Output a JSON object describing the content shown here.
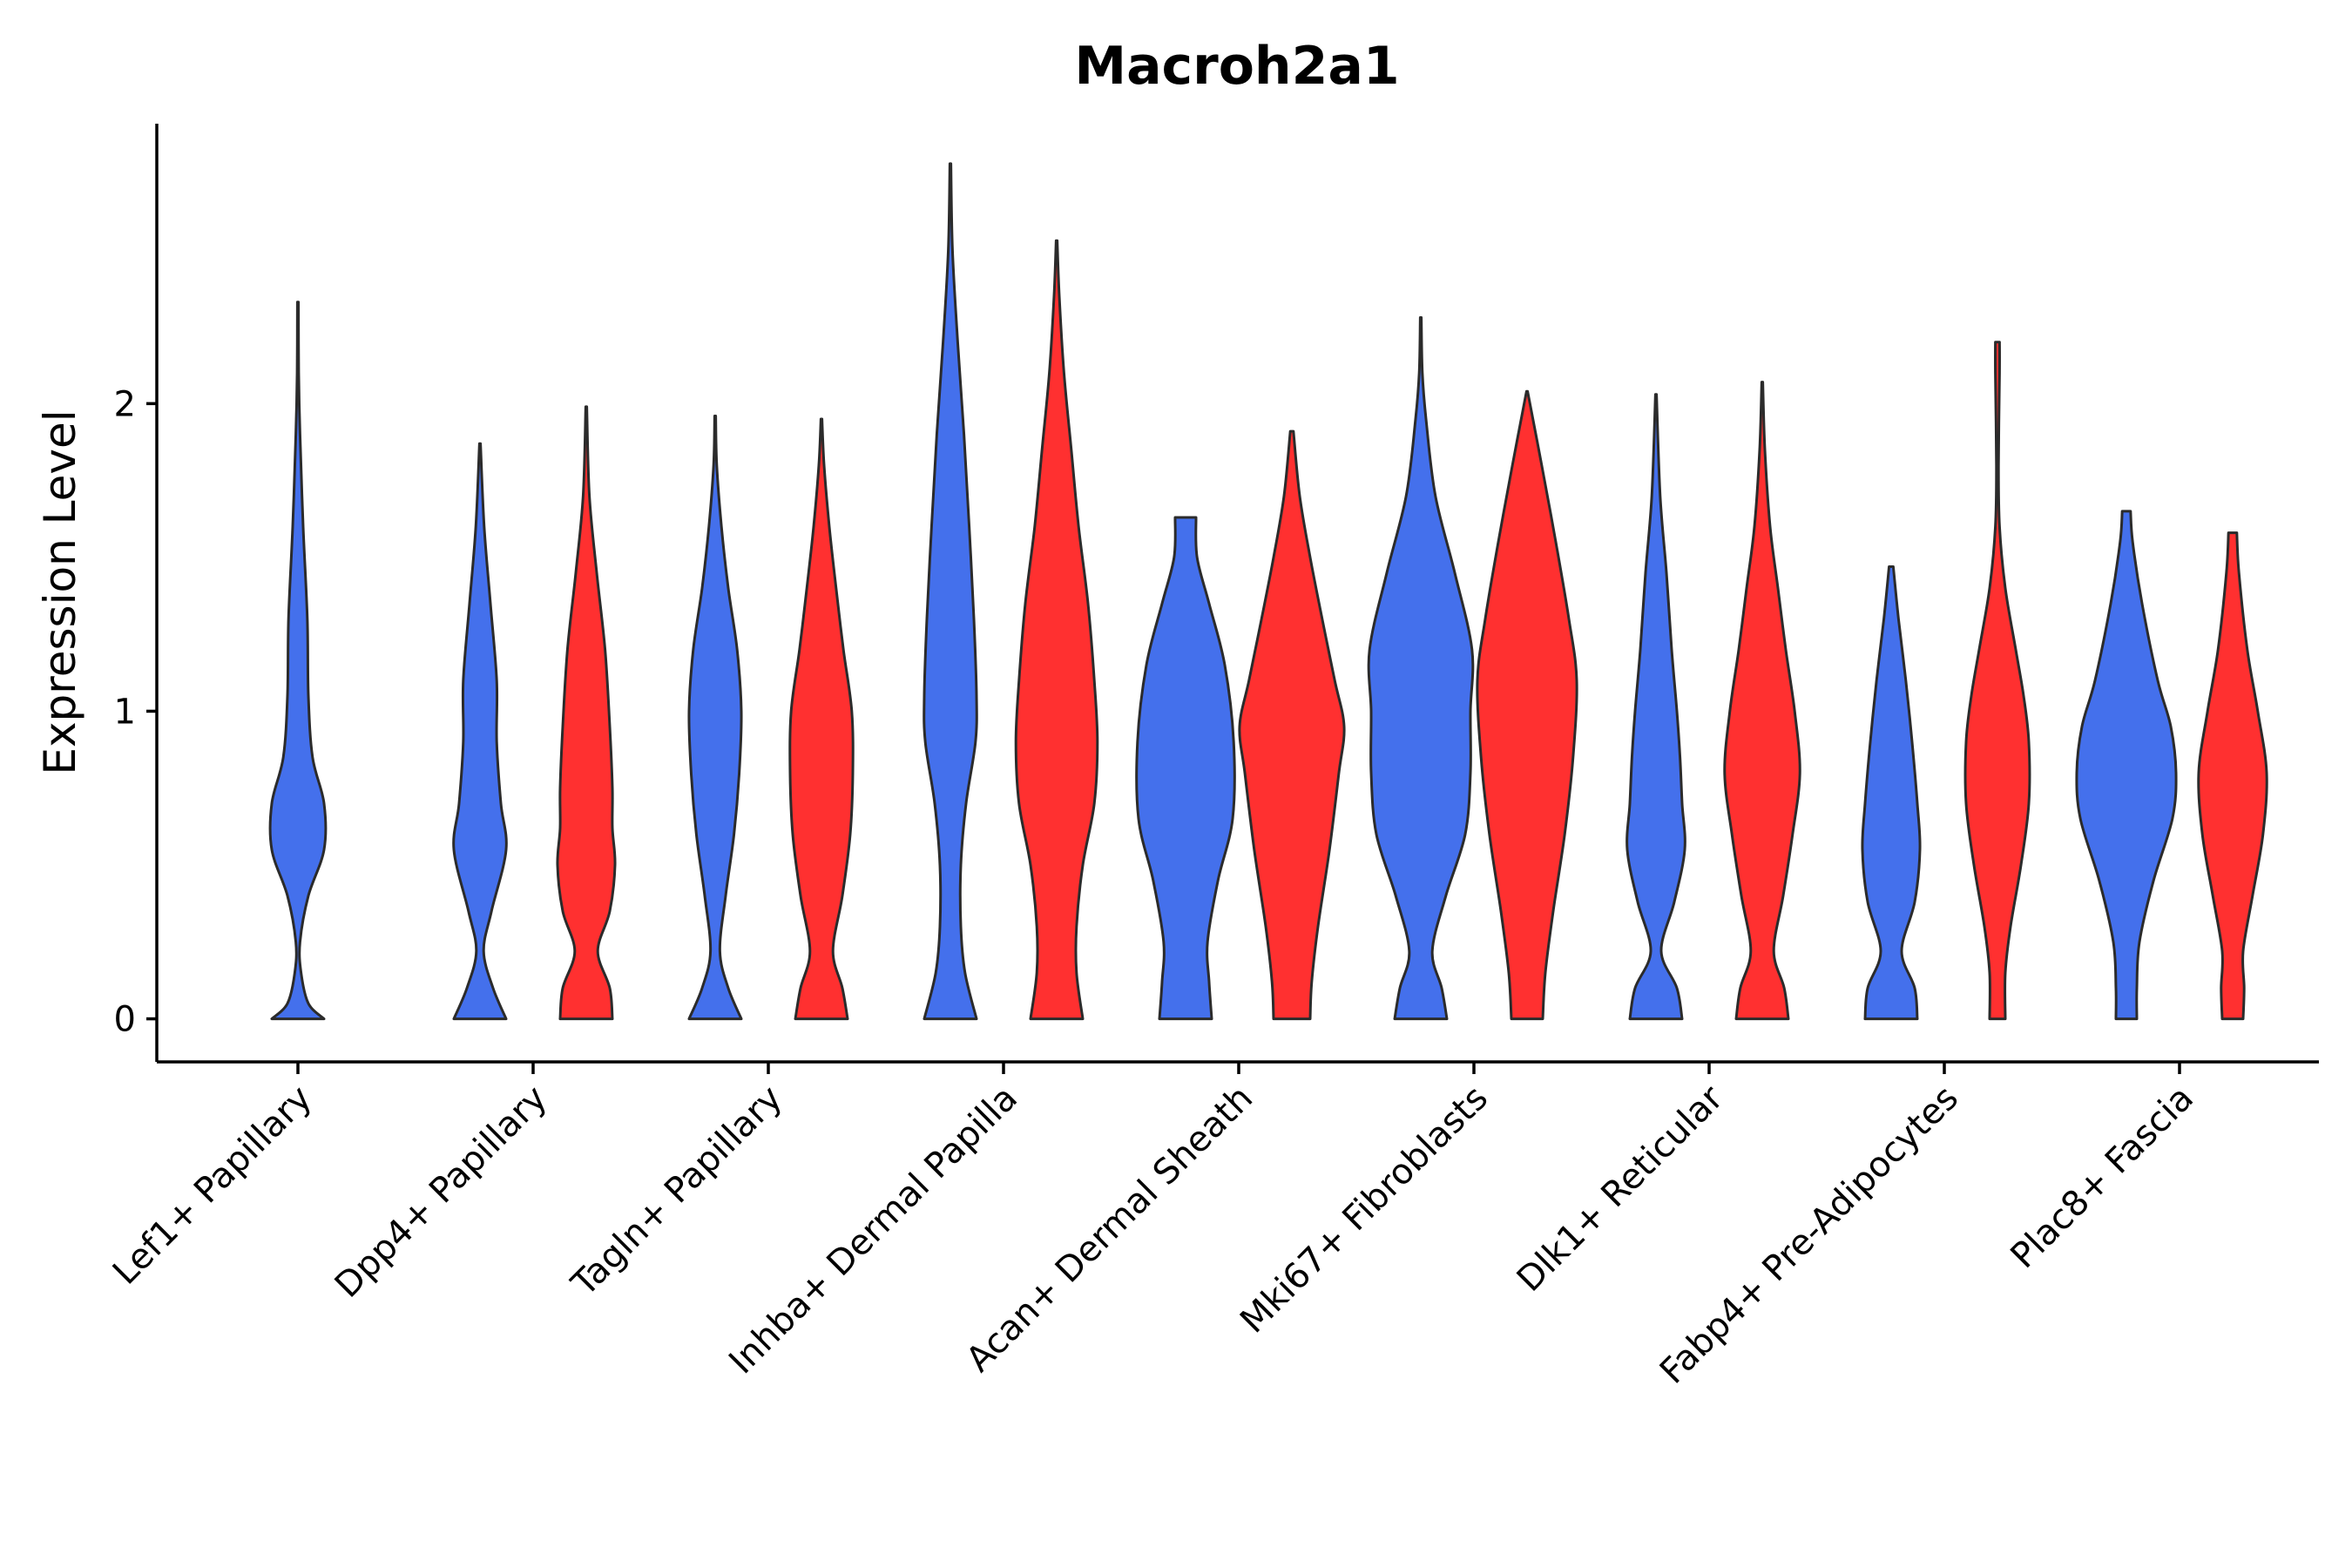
{
  "chart_data": {
    "type": "violin",
    "title": "Macroh2a1",
    "xlabel": "",
    "ylabel": "Expression Level",
    "ylim": [
      -0.14,
      2.91
    ],
    "yticks": [
      0,
      1,
      2
    ],
    "grid": false,
    "legend": "none",
    "categories": [
      "Lef1+ Papillary",
      "Dpp4+ Papillary",
      "Tagln+ Papillary",
      "Inhba+ Dermal Papilla",
      "Acan+ Dermal Sheath",
      "Mki67+ Fibroblasts",
      "Dlk1+ Reticular",
      "Fabp4+ Pre-Adipocytes",
      "Plac8+ Fascia"
    ],
    "series": [
      {
        "color": "#4470ec",
        "violins": [
          {
            "max": 2.33,
            "profile": [
              [
                0,
                0.5
              ],
              [
                0.05,
                0.2
              ],
              [
                0.15,
                0.06
              ],
              [
                0.25,
                0.04
              ],
              [
                0.4,
                0.2
              ],
              [
                0.55,
                0.5
              ],
              [
                0.7,
                0.5
              ],
              [
                0.85,
                0.28
              ],
              [
                1.05,
                0.2
              ],
              [
                1.3,
                0.18
              ],
              [
                1.6,
                0.1
              ],
              [
                1.9,
                0.04
              ],
              [
                2.1,
                0.015
              ],
              [
                2.33,
                0.01
              ]
            ]
          },
          {
            "max": 1.87,
            "profile": [
              [
                0,
                0.5
              ],
              [
                0.1,
                0.25
              ],
              [
                0.22,
                0.07
              ],
              [
                0.35,
                0.22
              ],
              [
                0.55,
                0.5
              ],
              [
                0.7,
                0.4
              ],
              [
                0.9,
                0.32
              ],
              [
                1.1,
                0.32
              ],
              [
                1.35,
                0.2
              ],
              [
                1.6,
                0.08
              ],
              [
                1.87,
                0.01
              ]
            ]
          },
          {
            "max": 1.96,
            "profile": [
              [
                0,
                0.5
              ],
              [
                0.1,
                0.25
              ],
              [
                0.22,
                0.09
              ],
              [
                0.4,
                0.2
              ],
              [
                0.6,
                0.36
              ],
              [
                0.8,
                0.46
              ],
              [
                1.0,
                0.5
              ],
              [
                1.2,
                0.42
              ],
              [
                1.4,
                0.25
              ],
              [
                1.6,
                0.12
              ],
              [
                1.8,
                0.03
              ],
              [
                1.96,
                0.01
              ]
            ]
          },
          {
            "max": 2.78,
            "profile": [
              [
                0,
                0.5
              ],
              [
                0.15,
                0.28
              ],
              [
                0.3,
                0.2
              ],
              [
                0.5,
                0.2
              ],
              [
                0.7,
                0.3
              ],
              [
                0.9,
                0.48
              ],
              [
                1.05,
                0.5
              ],
              [
                1.3,
                0.45
              ],
              [
                1.6,
                0.36
              ],
              [
                1.9,
                0.26
              ],
              [
                2.2,
                0.14
              ],
              [
                2.5,
                0.04
              ],
              [
                2.78,
                0.01
              ]
            ]
          },
          {
            "max": 1.63,
            "profile": [
              [
                0,
                0.5
              ],
              [
                0.12,
                0.45
              ],
              [
                0.25,
                0.42
              ],
              [
                0.45,
                0.62
              ],
              [
                0.65,
                0.9
              ],
              [
                0.9,
                0.92
              ],
              [
                1.15,
                0.75
              ],
              [
                1.35,
                0.45
              ],
              [
                1.5,
                0.22
              ],
              [
                1.63,
                0.2
              ]
            ]
          },
          {
            "max": 2.28,
            "profile": [
              [
                0,
                0.5
              ],
              [
                0.1,
                0.4
              ],
              [
                0.22,
                0.22
              ],
              [
                0.4,
                0.48
              ],
              [
                0.6,
                0.85
              ],
              [
                0.8,
                0.95
              ],
              [
                1.0,
                0.95
              ],
              [
                1.2,
                0.98
              ],
              [
                1.45,
                0.65
              ],
              [
                1.7,
                0.28
              ],
              [
                1.95,
                0.1
              ],
              [
                2.1,
                0.03
              ],
              [
                2.28,
                0.01
              ]
            ]
          },
          {
            "max": 2.03,
            "profile": [
              [
                0,
                0.5
              ],
              [
                0.1,
                0.4
              ],
              [
                0.22,
                0.1
              ],
              [
                0.38,
                0.35
              ],
              [
                0.55,
                0.55
              ],
              [
                0.7,
                0.5
              ],
              [
                0.85,
                0.46
              ],
              [
                1.0,
                0.4
              ],
              [
                1.2,
                0.3
              ],
              [
                1.45,
                0.2
              ],
              [
                1.7,
                0.08
              ],
              [
                2.03,
                0.01
              ]
            ]
          },
          {
            "max": 1.47,
            "profile": [
              [
                0,
                0.5
              ],
              [
                0.1,
                0.45
              ],
              [
                0.22,
                0.2
              ],
              [
                0.38,
                0.45
              ],
              [
                0.55,
                0.55
              ],
              [
                0.7,
                0.5
              ],
              [
                0.9,
                0.4
              ],
              [
                1.1,
                0.28
              ],
              [
                1.3,
                0.14
              ],
              [
                1.47,
                0.04
              ]
            ]
          },
          {
            "max": 1.65,
            "profile": [
              [
                0,
                0.2
              ],
              [
                0.1,
                0.2
              ],
              [
                0.25,
                0.25
              ],
              [
                0.45,
                0.52
              ],
              [
                0.65,
                0.88
              ],
              [
                0.8,
                0.95
              ],
              [
                0.95,
                0.85
              ],
              [
                1.1,
                0.6
              ],
              [
                1.35,
                0.3
              ],
              [
                1.55,
                0.12
              ],
              [
                1.65,
                0.08
              ]
            ]
          }
        ]
      },
      {
        "color": "#ff3030",
        "violins": [
          {
            "max": 1.99,
            "profile": [
              [
                0,
                0.5
              ],
              [
                0.1,
                0.45
              ],
              [
                0.22,
                0.22
              ],
              [
                0.35,
                0.45
              ],
              [
                0.5,
                0.55
              ],
              [
                0.62,
                0.5
              ],
              [
                0.75,
                0.5
              ],
              [
                0.95,
                0.45
              ],
              [
                1.2,
                0.36
              ],
              [
                1.45,
                0.2
              ],
              [
                1.7,
                0.06
              ],
              [
                1.99,
                0.01
              ]
            ]
          },
          {
            "max": 1.95,
            "profile": [
              [
                0,
                0.5
              ],
              [
                0.1,
                0.4
              ],
              [
                0.22,
                0.22
              ],
              [
                0.4,
                0.4
              ],
              [
                0.6,
                0.55
              ],
              [
                0.8,
                0.6
              ],
              [
                1.0,
                0.58
              ],
              [
                1.2,
                0.42
              ],
              [
                1.4,
                0.28
              ],
              [
                1.6,
                0.15
              ],
              [
                1.8,
                0.05
              ],
              [
                1.95,
                0.01
              ]
            ]
          },
          {
            "max": 2.53,
            "profile": [
              [
                0,
                0.5
              ],
              [
                0.15,
                0.38
              ],
              [
                0.3,
                0.38
              ],
              [
                0.5,
                0.5
              ],
              [
                0.7,
                0.72
              ],
              [
                0.9,
                0.78
              ],
              [
                1.1,
                0.72
              ],
              [
                1.35,
                0.6
              ],
              [
                1.6,
                0.42
              ],
              [
                1.85,
                0.28
              ],
              [
                2.1,
                0.14
              ],
              [
                2.35,
                0.05
              ],
              [
                2.53,
                0.01
              ]
            ]
          },
          {
            "max": 1.91,
            "profile": [
              [
                0,
                0.35
              ],
              [
                0.12,
                0.38
              ],
              [
                0.3,
                0.5
              ],
              [
                0.55,
                0.72
              ],
              [
                0.8,
                0.9
              ],
              [
                0.95,
                1.0
              ],
              [
                1.1,
                0.82
              ],
              [
                1.3,
                0.58
              ],
              [
                1.5,
                0.35
              ],
              [
                1.7,
                0.15
              ],
              [
                1.91,
                0.03
              ]
            ]
          },
          {
            "max": 2.04,
            "profile": [
              [
                0,
                0.3
              ],
              [
                0.15,
                0.35
              ],
              [
                0.35,
                0.5
              ],
              [
                0.6,
                0.72
              ],
              [
                0.85,
                0.88
              ],
              [
                1.1,
                0.95
              ],
              [
                1.3,
                0.8
              ],
              [
                1.55,
                0.55
              ],
              [
                1.8,
                0.28
              ],
              [
                2.04,
                0.01
              ]
            ]
          },
          {
            "max": 2.07,
            "profile": [
              [
                0,
                0.5
              ],
              [
                0.1,
                0.42
              ],
              [
                0.22,
                0.22
              ],
              [
                0.4,
                0.4
              ],
              [
                0.6,
                0.58
              ],
              [
                0.8,
                0.72
              ],
              [
                1.0,
                0.62
              ],
              [
                1.2,
                0.45
              ],
              [
                1.4,
                0.3
              ],
              [
                1.6,
                0.15
              ],
              [
                1.85,
                0.05
              ],
              [
                2.07,
                0.01
              ]
            ]
          },
          {
            "max": 2.2,
            "profile": [
              [
                0,
                0.15
              ],
              [
                0.15,
                0.15
              ],
              [
                0.3,
                0.25
              ],
              [
                0.5,
                0.45
              ],
              [
                0.7,
                0.6
              ],
              [
                0.9,
                0.6
              ],
              [
                1.05,
                0.5
              ],
              [
                1.2,
                0.35
              ],
              [
                1.4,
                0.15
              ],
              [
                1.6,
                0.04
              ],
              [
                1.8,
                0.02
              ],
              [
                2.1,
                0.04
              ],
              [
                2.2,
                0.04
              ]
            ]
          },
          {
            "max": 1.58,
            "profile": [
              [
                0,
                0.2
              ],
              [
                0.1,
                0.22
              ],
              [
                0.22,
                0.2
              ],
              [
                0.4,
                0.38
              ],
              [
                0.6,
                0.58
              ],
              [
                0.8,
                0.65
              ],
              [
                1.0,
                0.48
              ],
              [
                1.2,
                0.28
              ],
              [
                1.45,
                0.12
              ],
              [
                1.58,
                0.08
              ]
            ]
          }
        ]
      }
    ]
  }
}
